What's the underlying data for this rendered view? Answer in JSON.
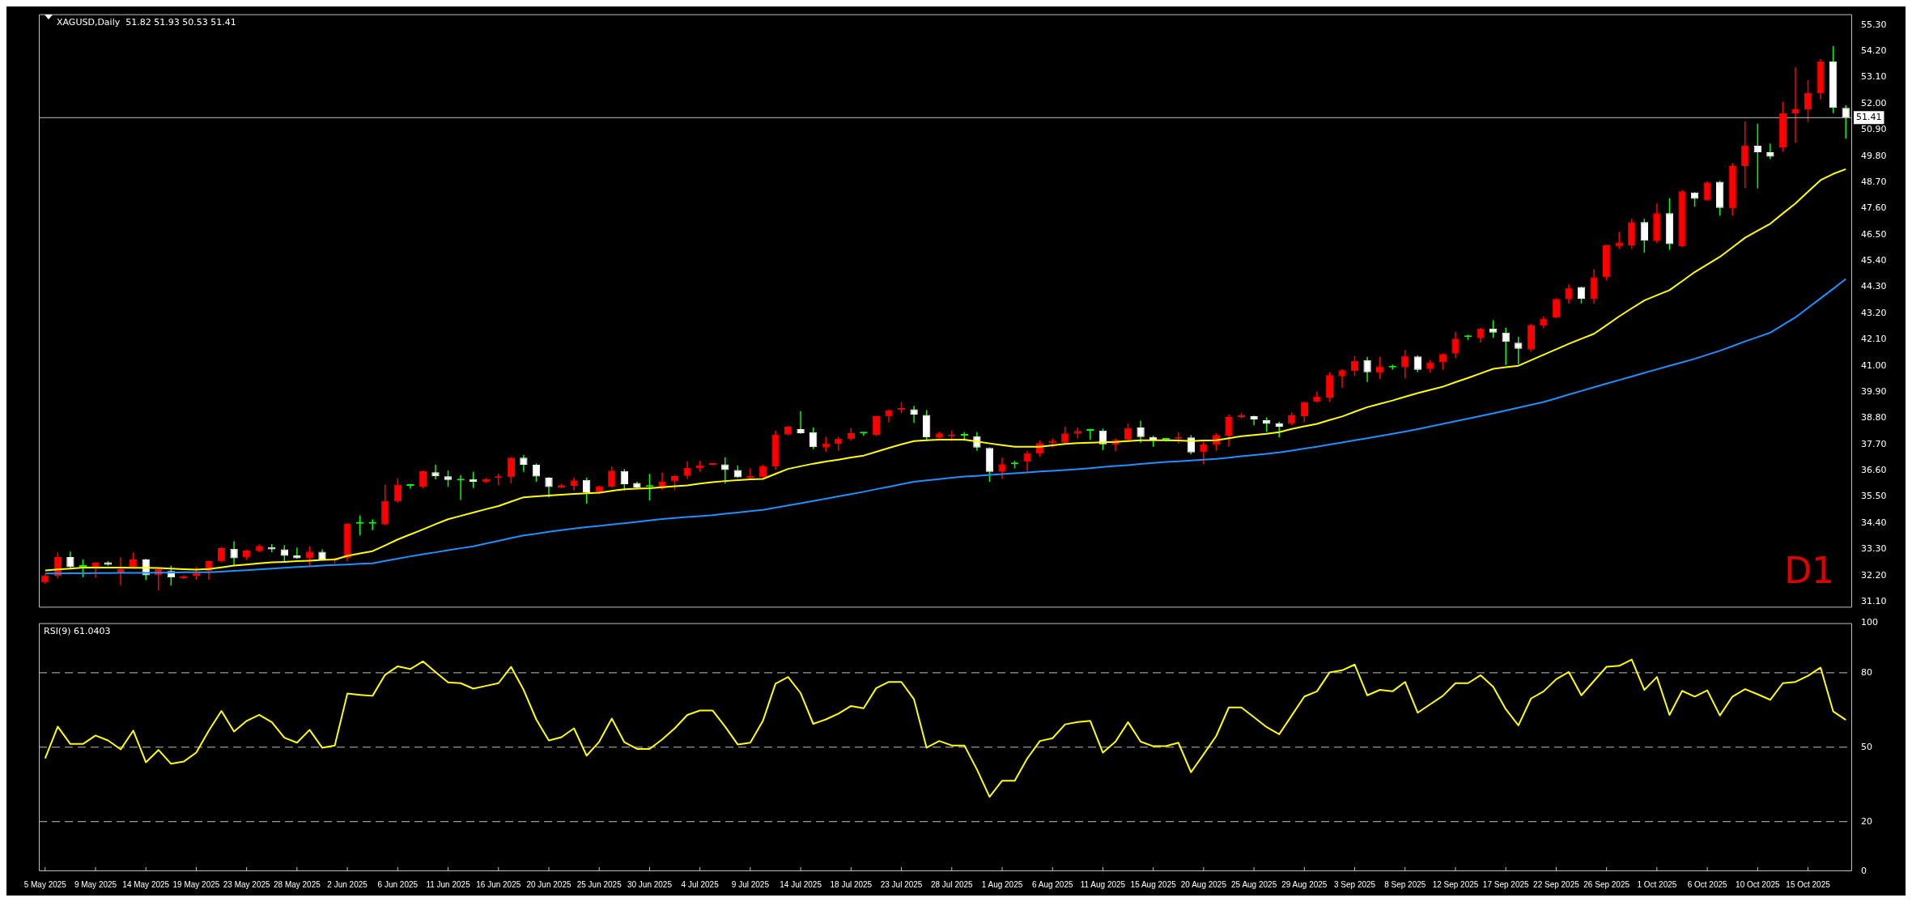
{
  "chart_data": [
    {
      "type": "candlestick",
      "title": "XAGUSD,Daily  51.82 51.93 50.53 51.41",
      "categories": [
        null,
        null,
        null,
        null,
        null,
        null,
        null,
        null,
        null,
        null,
        null,
        null,
        null,
        null,
        null,
        null,
        null,
        null,
        null,
        null,
        null,
        null,
        null,
        null,
        null,
        null,
        null,
        null,
        null,
        null,
        null,
        null,
        null,
        null,
        null,
        null,
        null,
        null,
        null,
        null,
        null,
        null,
        null,
        null,
        null,
        null,
        null,
        null,
        null,
        null,
        null,
        null,
        null,
        null,
        null,
        null,
        null,
        null,
        null,
        null,
        null,
        null,
        null,
        null,
        null,
        null,
        null,
        null,
        null,
        null,
        null,
        null,
        null,
        null,
        null,
        null,
        null,
        null,
        null,
        null,
        null,
        null,
        null,
        null,
        null,
        null,
        null,
        null,
        null,
        null,
        null,
        null,
        null,
        null,
        null,
        null,
        null,
        null,
        null,
        null,
        null,
        null,
        null,
        null,
        null,
        null,
        null,
        null,
        null,
        null,
        null,
        null,
        null,
        null,
        null,
        null,
        null,
        null,
        null,
        null,
        null,
        null,
        null,
        null,
        null,
        null,
        null,
        null,
        null,
        null,
        null,
        null,
        null,
        null,
        null,
        null,
        null,
        null,
        null,
        null,
        null,
        null,
        null,
        null
      ],
      "ohlc": [
        [
          31.9,
          32.25,
          31.85,
          32.21
        ],
        [
          32.19,
          33.17,
          32.07,
          32.97
        ],
        [
          32.97,
          33.2,
          32.5,
          32.55
        ],
        [
          32.57,
          32.87,
          32.12,
          32.56
        ],
        [
          32.49,
          32.75,
          32.1,
          32.73
        ],
        [
          32.75,
          32.8,
          32.6,
          32.65
        ],
        [
          32.29,
          32.95,
          31.79,
          32.46
        ],
        [
          32.55,
          33.17,
          32.5,
          32.87
        ],
        [
          32.87,
          32.9,
          32.0,
          32.21
        ],
        [
          32.21,
          32.5,
          31.57,
          32.46
        ],
        [
          32.38,
          32.61,
          31.77,
          32.11
        ],
        [
          32.09,
          32.2,
          32.05,
          32.17
        ],
        [
          32.19,
          32.55,
          32.02,
          32.31
        ],
        [
          32.38,
          32.82,
          32.02,
          32.8
        ],
        [
          32.78,
          33.4,
          32.75,
          33.34
        ],
        [
          33.32,
          33.63,
          32.61,
          32.92
        ],
        [
          32.95,
          33.28,
          32.85,
          33.24
        ],
        [
          33.22,
          33.5,
          33.18,
          33.44
        ],
        [
          33.39,
          33.51,
          33.17,
          33.29
        ],
        [
          33.29,
          33.47,
          32.75,
          33.02
        ],
        [
          33.04,
          33.37,
          32.9,
          32.92
        ],
        [
          32.92,
          33.42,
          32.61,
          33.2
        ],
        [
          33.19,
          33.29,
          32.85,
          32.87
        ],
        [
          32.83,
          32.95,
          32.7,
          32.92
        ],
        [
          32.93,
          34.4,
          32.8,
          34.37
        ],
        [
          34.37,
          34.72,
          33.88,
          34.38
        ],
        [
          34.38,
          34.55,
          34.1,
          34.37
        ],
        [
          34.34,
          36.01,
          34.3,
          35.32
        ],
        [
          35.3,
          36.28,
          35.25,
          36.01
        ],
        [
          35.96,
          36.04,
          35.84,
          35.97
        ],
        [
          35.92,
          36.6,
          35.85,
          36.58
        ],
        [
          36.53,
          36.84,
          36.23,
          36.36
        ],
        [
          36.36,
          36.6,
          35.92,
          36.21
        ],
        [
          36.2,
          36.41,
          35.37,
          36.19
        ],
        [
          36.24,
          36.55,
          35.87,
          36.13
        ],
        [
          36.11,
          36.28,
          36.08,
          36.24
        ],
        [
          36.29,
          36.46,
          35.99,
          36.35
        ],
        [
          36.33,
          37.16,
          36.06,
          37.14
        ],
        [
          37.14,
          37.26,
          36.55,
          36.84
        ],
        [
          36.84,
          36.9,
          36.13,
          36.35
        ],
        [
          36.3,
          36.33,
          35.48,
          35.91
        ],
        [
          35.89,
          36.04,
          35.85,
          35.99
        ],
        [
          35.96,
          36.3,
          35.76,
          36.19
        ],
        [
          36.21,
          36.3,
          35.21,
          35.69
        ],
        [
          35.67,
          35.96,
          35.62,
          35.94
        ],
        [
          35.92,
          36.77,
          35.88,
          36.6
        ],
        [
          36.58,
          36.67,
          35.76,
          36.03
        ],
        [
          36.08,
          36.13,
          35.85,
          35.89
        ],
        [
          35.93,
          36.46,
          35.35,
          35.92
        ],
        [
          35.86,
          36.52,
          35.8,
          36.14
        ],
        [
          36.15,
          36.42,
          35.78,
          36.37
        ],
        [
          36.38,
          36.99,
          36.25,
          36.72
        ],
        [
          36.7,
          37.01,
          36.55,
          36.82
        ],
        [
          36.84,
          36.9,
          36.82,
          36.87
        ],
        [
          36.86,
          37.16,
          36.05,
          36.62
        ],
        [
          36.62,
          36.82,
          36.3,
          36.32
        ],
        [
          36.3,
          36.7,
          36.21,
          36.38
        ],
        [
          36.33,
          36.84,
          36.3,
          36.79
        ],
        [
          36.77,
          38.28,
          36.64,
          38.12
        ],
        [
          38.11,
          38.47,
          38.08,
          38.44
        ],
        [
          38.34,
          39.09,
          38.14,
          38.17
        ],
        [
          38.21,
          38.41,
          37.5,
          37.58
        ],
        [
          37.57,
          38.02,
          37.4,
          37.74
        ],
        [
          37.72,
          38.02,
          37.43,
          37.94
        ],
        [
          37.92,
          38.39,
          37.85,
          38.17
        ],
        [
          38.16,
          38.22,
          38.07,
          38.17
        ],
        [
          38.09,
          38.9,
          38.05,
          38.88
        ],
        [
          38.87,
          39.16,
          38.63,
          39.14
        ],
        [
          39.14,
          39.47,
          39.02,
          39.22
        ],
        [
          39.17,
          39.32,
          38.6,
          38.95
        ],
        [
          38.93,
          39.14,
          37.84,
          37.99
        ],
        [
          37.97,
          38.22,
          37.95,
          38.16
        ],
        [
          38.04,
          38.29,
          37.84,
          38.09
        ],
        [
          38.07,
          38.22,
          37.85,
          38.08
        ],
        [
          38.04,
          38.21,
          37.43,
          37.57
        ],
        [
          37.55,
          37.57,
          36.13,
          36.55
        ],
        [
          36.55,
          37.14,
          36.25,
          36.87
        ],
        [
          36.87,
          37.01,
          36.69,
          36.88
        ],
        [
          36.97,
          37.43,
          36.55,
          37.33
        ],
        [
          37.31,
          37.87,
          37.18,
          37.75
        ],
        [
          37.75,
          37.94,
          37.57,
          37.85
        ],
        [
          37.77,
          38.44,
          37.75,
          38.16
        ],
        [
          38.14,
          38.41,
          37.94,
          38.26
        ],
        [
          38.27,
          38.36,
          37.89,
          38.28
        ],
        [
          38.28,
          38.36,
          37.46,
          37.7
        ],
        [
          37.68,
          37.95,
          37.41,
          37.89
        ],
        [
          37.89,
          38.58,
          37.87,
          38.39
        ],
        [
          38.41,
          38.7,
          37.77,
          38.01
        ],
        [
          38.01,
          38.06,
          37.6,
          37.9
        ],
        [
          37.91,
          37.96,
          37.82,
          37.9
        ],
        [
          37.94,
          38.22,
          37.74,
          38.01
        ],
        [
          37.99,
          38.09,
          37.28,
          37.36
        ],
        [
          37.38,
          37.82,
          36.87,
          37.7
        ],
        [
          37.68,
          38.17,
          37.43,
          38.09
        ],
        [
          38.07,
          38.95,
          37.6,
          38.85
        ],
        [
          38.85,
          39.02,
          38.78,
          38.88
        ],
        [
          38.88,
          38.9,
          38.5,
          38.75
        ],
        [
          38.71,
          38.83,
          38.22,
          38.56
        ],
        [
          38.58,
          38.65,
          37.99,
          38.44
        ],
        [
          38.56,
          39.04,
          38.5,
          38.92
        ],
        [
          38.88,
          39.5,
          38.63,
          39.48
        ],
        [
          39.49,
          39.92,
          39.45,
          39.71
        ],
        [
          39.66,
          40.73,
          39.48,
          40.61
        ],
        [
          40.56,
          40.85,
          40.07,
          40.81
        ],
        [
          40.78,
          41.42,
          40.56,
          41.2
        ],
        [
          41.24,
          41.37,
          40.32,
          40.73
        ],
        [
          40.7,
          41.37,
          40.44,
          40.97
        ],
        [
          40.93,
          41.04,
          40.84,
          40.94
        ],
        [
          40.93,
          41.66,
          40.47,
          41.41
        ],
        [
          41.39,
          41.44,
          40.73,
          40.83
        ],
        [
          40.86,
          41.24,
          40.7,
          41.14
        ],
        [
          41.14,
          41.52,
          40.83,
          41.49
        ],
        [
          41.51,
          42.42,
          41.32,
          42.14
        ],
        [
          42.2,
          42.3,
          42.08,
          42.21
        ],
        [
          42.15,
          42.59,
          41.97,
          42.56
        ],
        [
          42.56,
          42.91,
          42.17,
          42.39
        ],
        [
          42.39,
          42.59,
          41.03,
          42.0
        ],
        [
          41.97,
          42.22,
          41.07,
          41.71
        ],
        [
          41.68,
          42.76,
          41.58,
          42.71
        ],
        [
          42.68,
          43.07,
          42.59,
          42.98
        ],
        [
          43.02,
          43.83,
          43.0,
          43.8
        ],
        [
          43.78,
          44.42,
          43.61,
          44.27
        ],
        [
          44.3,
          44.32,
          43.61,
          43.8
        ],
        [
          43.8,
          45.05,
          43.61,
          44.71
        ],
        [
          44.71,
          46.07,
          44.57,
          46.05
        ],
        [
          46.0,
          46.61,
          45.9,
          46.17
        ],
        [
          46.05,
          47.17,
          45.9,
          47.03
        ],
        [
          47.03,
          47.17,
          45.74,
          46.25
        ],
        [
          46.23,
          47.81,
          46.15,
          47.4
        ],
        [
          47.4,
          48.03,
          45.86,
          46.1
        ],
        [
          46.01,
          48.37,
          45.98,
          48.32
        ],
        [
          48.27,
          48.28,
          47.67,
          48.01
        ],
        [
          47.94,
          48.74,
          47.92,
          48.69
        ],
        [
          48.72,
          48.76,
          47.3,
          47.62
        ],
        [
          47.61,
          49.5,
          47.3,
          49.38
        ],
        [
          49.38,
          51.25,
          48.45,
          50.25
        ],
        [
          50.23,
          51.16,
          48.44,
          49.96
        ],
        [
          49.96,
          50.32,
          49.67,
          49.77
        ],
        [
          50.16,
          52.08,
          49.98,
          51.6
        ],
        [
          51.59,
          53.53,
          50.35,
          51.76
        ],
        [
          51.74,
          52.99,
          51.23,
          52.45
        ],
        [
          52.43,
          53.87,
          52.18,
          53.77
        ],
        [
          53.77,
          54.41,
          51.6,
          51.82
        ],
        [
          51.82,
          51.93,
          50.53,
          51.41
        ]
      ],
      "colors": [
        "#ff0000",
        "#ff0000",
        "#ffffff",
        "#00ff00",
        "#ff0000",
        "#ffffff",
        "#ff0000",
        "#ff0000",
        "#ffffff",
        "#ff0000",
        "#ffffff",
        "#ff0000",
        "#ff0000",
        "#ff0000",
        "#ff0000",
        "#ffffff",
        "#ff0000",
        "#ff0000",
        "#ffffff",
        "#ffffff",
        "#ffffff",
        "#ff0000",
        "#ffffff",
        "#ff0000",
        "#ff0000",
        "#00ff00",
        "#00ff00",
        "#ff0000",
        "#ff0000",
        "#00ff00",
        "#ff0000",
        "#ffffff",
        "#ffffff",
        "#00ff00",
        "#ffffff",
        "#ff0000",
        "#ff0000",
        "#ff0000",
        "#ffffff",
        "#ffffff",
        "#ffffff",
        "#ff0000",
        "#ff0000",
        "#ffffff",
        "#ff0000",
        "#ff0000",
        "#ffffff",
        "#ffffff",
        "#00ff00",
        "#ff0000",
        "#ff0000",
        "#ff0000",
        "#ff0000",
        "#ff0000",
        "#ffffff",
        "#ffffff",
        "#ff0000",
        "#ff0000",
        "#ff0000",
        "#ff0000",
        "#ffffff",
        "#ffffff",
        "#ff0000",
        "#ff0000",
        "#ff0000",
        "#00ff00",
        "#ff0000",
        "#ff0000",
        "#ff0000",
        "#ffffff",
        "#ffffff",
        "#ff0000",
        "#ff0000",
        "#00ff00",
        "#ffffff",
        "#ffffff",
        "#ff0000",
        "#00ff00",
        "#ff0000",
        "#ff0000",
        "#ff0000",
        "#ff0000",
        "#ff0000",
        "#00ff00",
        "#ffffff",
        "#ff0000",
        "#ff0000",
        "#ffffff",
        "#ffffff",
        "#00ff00",
        "#ff0000",
        "#ffffff",
        "#ff0000",
        "#ff0000",
        "#ff0000",
        "#ff0000",
        "#ffffff",
        "#ffffff",
        "#ffffff",
        "#ff0000",
        "#ff0000",
        "#ff0000",
        "#ff0000",
        "#ff0000",
        "#ff0000",
        "#ffffff",
        "#ff0000",
        "#00ff00",
        "#ff0000",
        "#ffffff",
        "#ff0000",
        "#ff0000",
        "#ff0000",
        "#00ff00",
        "#ff0000",
        "#ffffff",
        "#ffffff",
        "#ffffff",
        "#ff0000",
        "#ff0000",
        "#ff0000",
        "#ff0000",
        "#ffffff",
        "#ff0000",
        "#ff0000",
        "#ff0000",
        "#ff0000",
        "#ffffff",
        "#ff0000",
        "#ffffff",
        "#ff0000",
        "#ffffff",
        "#ff0000",
        "#ffffff",
        "#ff0000",
        "#ff0000",
        "#ffffff",
        "#ffffff",
        "#ff0000",
        "#ff0000",
        "#ff0000",
        "#ff0000",
        "#ffffff",
        "#ffffff"
      ],
      "series": [
        {
          "type": "line",
          "color": "#ffff00",
          "values": [
            32.41,
            32.45,
            32.49,
            32.53,
            32.53,
            32.53,
            32.53,
            32.52,
            32.52,
            32.51,
            32.49,
            32.46,
            32.44,
            32.47,
            32.54,
            32.61,
            32.66,
            32.71,
            32.75,
            32.77,
            32.8,
            32.82,
            32.85,
            32.87,
            33.02,
            33.12,
            33.22,
            33.46,
            33.71,
            33.92,
            34.13,
            34.35,
            34.56,
            34.7,
            34.84,
            34.98,
            35.11,
            35.3,
            35.48,
            35.52,
            35.55,
            35.59,
            35.62,
            35.65,
            35.67,
            35.75,
            35.82,
            35.84,
            35.86,
            35.9,
            35.94,
            35.98,
            36.05,
            36.11,
            36.16,
            36.2,
            36.23,
            36.25,
            36.46,
            36.67,
            36.78,
            36.89,
            36.98,
            37.06,
            37.15,
            37.23,
            37.39,
            37.55,
            37.7,
            37.84,
            37.87,
            37.9,
            37.9,
            37.9,
            37.82,
            37.74,
            37.67,
            37.6,
            37.6,
            37.6,
            37.66,
            37.72,
            37.75,
            37.77,
            37.79,
            37.8,
            37.84,
            37.87,
            37.87,
            37.87,
            37.86,
            37.84,
            37.86,
            37.87,
            37.96,
            38.04,
            38.09,
            38.14,
            38.21,
            38.35,
            38.46,
            38.56,
            38.72,
            38.87,
            39.07,
            39.26,
            39.4,
            39.54,
            39.7,
            39.85,
            39.99,
            40.12,
            40.31,
            40.49,
            40.68,
            40.87,
            40.94,
            41.0,
            41.23,
            41.46,
            41.69,
            41.92,
            42.13,
            42.34,
            42.7,
            43.07,
            43.41,
            43.74,
            43.96,
            44.17,
            44.55,
            44.93,
            45.25,
            45.57,
            45.97,
            46.37,
            46.67,
            46.96,
            47.39,
            47.81,
            48.3,
            48.79,
            49.05,
            49.25
          ]
        },
        {
          "type": "line",
          "color": "#1e90ff",
          "values": [
            32.28,
            32.28,
            32.29,
            32.29,
            32.3,
            32.3,
            32.31,
            32.31,
            32.31,
            32.32,
            32.32,
            32.33,
            32.33,
            32.33,
            32.36,
            32.39,
            32.42,
            32.45,
            32.49,
            32.52,
            32.55,
            32.58,
            32.61,
            32.64,
            32.66,
            32.69,
            32.71,
            32.81,
            32.9,
            33.0,
            33.09,
            33.17,
            33.26,
            33.34,
            33.42,
            33.54,
            33.65,
            33.77,
            33.88,
            33.95,
            34.03,
            34.1,
            34.17,
            34.23,
            34.28,
            34.34,
            34.39,
            34.45,
            34.51,
            34.57,
            34.61,
            34.65,
            34.69,
            34.73,
            34.79,
            34.84,
            34.9,
            34.95,
            35.04,
            35.14,
            35.23,
            35.32,
            35.42,
            35.52,
            35.61,
            35.71,
            35.82,
            35.92,
            36.03,
            36.13,
            36.19,
            36.24,
            36.3,
            36.35,
            36.38,
            36.42,
            36.45,
            36.49,
            36.52,
            36.56,
            36.59,
            36.62,
            36.66,
            36.7,
            36.75,
            36.79,
            36.83,
            36.88,
            36.92,
            36.96,
            36.99,
            37.02,
            37.06,
            37.09,
            37.14,
            37.2,
            37.25,
            37.3,
            37.36,
            37.44,
            37.52,
            37.6,
            37.69,
            37.78,
            37.87,
            37.96,
            38.05,
            38.14,
            38.24,
            38.34,
            38.45,
            38.56,
            38.67,
            38.78,
            38.89,
            39.0,
            39.12,
            39.24,
            39.36,
            39.48,
            39.63,
            39.79,
            39.94,
            40.1,
            40.25,
            40.4,
            40.55,
            40.7,
            40.85,
            41.0,
            41.14,
            41.29,
            41.46,
            41.63,
            41.82,
            42.02,
            42.2,
            42.39,
            42.71,
            43.03,
            43.43,
            43.83,
            44.23,
            44.64
          ]
        }
      ],
      "ylim": [
        30.85,
        55.75
      ],
      "yticks": [
        {
          "value": 31.1,
          "label": "31.10"
        },
        {
          "value": 32.2,
          "label": "32.20"
        },
        {
          "value": 33.3,
          "label": "33.30"
        },
        {
          "value": 34.4,
          "label": "34.40"
        },
        {
          "value": 35.5,
          "label": "35.50"
        },
        {
          "value": 36.6,
          "label": "36.60"
        },
        {
          "value": 37.7,
          "label": "37.70"
        },
        {
          "value": 38.8,
          "label": "38.80"
        },
        {
          "value": 39.9,
          "label": "39.90"
        },
        {
          "value": 41.0,
          "label": "41.00"
        },
        {
          "value": 42.1,
          "label": "42.10"
        },
        {
          "value": 43.2,
          "label": "43.20"
        },
        {
          "value": 44.3,
          "label": "44.30"
        },
        {
          "value": 45.4,
          "label": "45.40"
        },
        {
          "value": 46.5,
          "label": "46.50"
        },
        {
          "value": 47.6,
          "label": "47.60"
        },
        {
          "value": 48.7,
          "label": "48.70"
        },
        {
          "value": 49.8,
          "label": "49.80"
        },
        {
          "value": 50.9,
          "label": "50.90"
        },
        {
          "value": 52.0,
          "label": "52.00"
        },
        {
          "value": 53.1,
          "label": "53.10"
        },
        {
          "value": 54.2,
          "label": "54.20"
        },
        {
          "value": 55.3,
          "label": "55.30"
        }
      ],
      "ref_lines": [
        {
          "axis": "y",
          "value": 51.41,
          "label": "51.41",
          "color": "#c0c0c0"
        }
      ],
      "annotations": [
        "D1"
      ],
      "tick_labels": "y"
    },
    {
      "type": "line",
      "title": "RSI(9) 61.0403",
      "categories": [
        "5 May 2025",
        null,
        null,
        null,
        "9 May 2025",
        null,
        null,
        null,
        "14 May 2025",
        null,
        null,
        null,
        "19 May 2025",
        null,
        null,
        null,
        "23 May 2025",
        null,
        null,
        null,
        "28 May 2025",
        null,
        null,
        null,
        "2 Jun 2025",
        null,
        null,
        null,
        "6 Jun 2025",
        null,
        null,
        null,
        "11 Jun 2025",
        null,
        null,
        null,
        "16 Jun 2025",
        null,
        null,
        null,
        "20 Jun 2025",
        null,
        null,
        null,
        "25 Jun 2025",
        null,
        null,
        null,
        "30 Jun 2025",
        null,
        null,
        null,
        "4 Jul 2025",
        null,
        null,
        null,
        "9 Jul 2025",
        null,
        null,
        null,
        "14 Jul 2025",
        null,
        null,
        null,
        "18 Jul 2025",
        null,
        null,
        null,
        "23 Jul 2025",
        null,
        null,
        null,
        "28 Jul 2025",
        null,
        null,
        null,
        "1 Aug 2025",
        null,
        null,
        null,
        "6 Aug 2025",
        null,
        null,
        null,
        "11 Aug 2025",
        null,
        null,
        null,
        "15 Aug 2025",
        null,
        null,
        null,
        "20 Aug 2025",
        null,
        null,
        null,
        "25 Aug 2025",
        null,
        null,
        null,
        "29 Aug 2025",
        null,
        null,
        null,
        "3 Sep 2025",
        null,
        null,
        null,
        "8 Sep 2025",
        null,
        null,
        null,
        "12 Sep 2025",
        null,
        null,
        null,
        "17 Sep 2025",
        null,
        null,
        null,
        "22 Sep 2025",
        null,
        null,
        null,
        "26 Sep 2025",
        null,
        null,
        null,
        "1 Oct 2025",
        null,
        null,
        null,
        "6 Oct 2025",
        null,
        null,
        null,
        "10 Oct 2025",
        null,
        null,
        null,
        "15 Oct 2025",
        null,
        null,
        null
      ],
      "series": [
        {
          "type": "line",
          "color": "#ffff00",
          "values": [
            45.5,
            58.3,
            51.3,
            51.3,
            54.7,
            52.7,
            49.1,
            56.7,
            43.9,
            48.9,
            43.3,
            44.2,
            47.8,
            56.7,
            64.6,
            56.3,
            60.6,
            63.0,
            60.1,
            53.8,
            51.8,
            57.0,
            49.8,
            50.7,
            71.6,
            71.1,
            70.7,
            79.2,
            82.6,
            81.5,
            84.6,
            80.3,
            76.1,
            75.8,
            73.6,
            74.7,
            75.8,
            82.4,
            73.1,
            61.2,
            52.7,
            54.0,
            57.6,
            46.6,
            52.2,
            61.5,
            52.0,
            49.3,
            49.3,
            53.1,
            57.6,
            63.0,
            64.8,
            64.8,
            58.3,
            51.1,
            51.8,
            60.6,
            75.6,
            78.3,
            71.8,
            59.4,
            61.2,
            63.5,
            66.6,
            65.7,
            73.8,
            76.3,
            76.3,
            69.3,
            49.8,
            52.5,
            50.7,
            50.7,
            41.0,
            30.0,
            36.5,
            36.5,
            45.5,
            52.5,
            53.6,
            59.2,
            60.1,
            60.6,
            47.8,
            52.2,
            60.1,
            52.2,
            50.4,
            50.4,
            51.8,
            39.9,
            47.1,
            54.5,
            66.0,
            66.0,
            62.1,
            58.1,
            55.2,
            62.8,
            70.4,
            72.5,
            80.1,
            81.0,
            83.3,
            70.9,
            73.1,
            72.5,
            76.3,
            63.9,
            67.3,
            70.7,
            75.8,
            75.8,
            79.0,
            74.3,
            65.3,
            58.8,
            69.6,
            72.5,
            77.4,
            80.3,
            70.9,
            76.7,
            82.4,
            82.8,
            85.3,
            73.1,
            78.3,
            63.0,
            72.7,
            70.4,
            72.9,
            62.8,
            70.4,
            73.4,
            71.3,
            69.1,
            75.8,
            76.3,
            78.8,
            82.1,
            64.4,
            61.0
          ]
        }
      ],
      "ylim": [
        0,
        100
      ],
      "yticks": [
        0,
        20,
        50,
        80,
        100
      ],
      "ref_lines": [
        {
          "axis": "y",
          "value": 20,
          "color": "#c0c0c0",
          "line_style": "dashed"
        },
        {
          "axis": "y",
          "value": 50,
          "color": "#c0c0c0",
          "line_style": "dashed"
        },
        {
          "axis": "y",
          "value": 80,
          "color": "#c0c0c0",
          "line_style": "dashed"
        }
      ]
    }
  ]
}
